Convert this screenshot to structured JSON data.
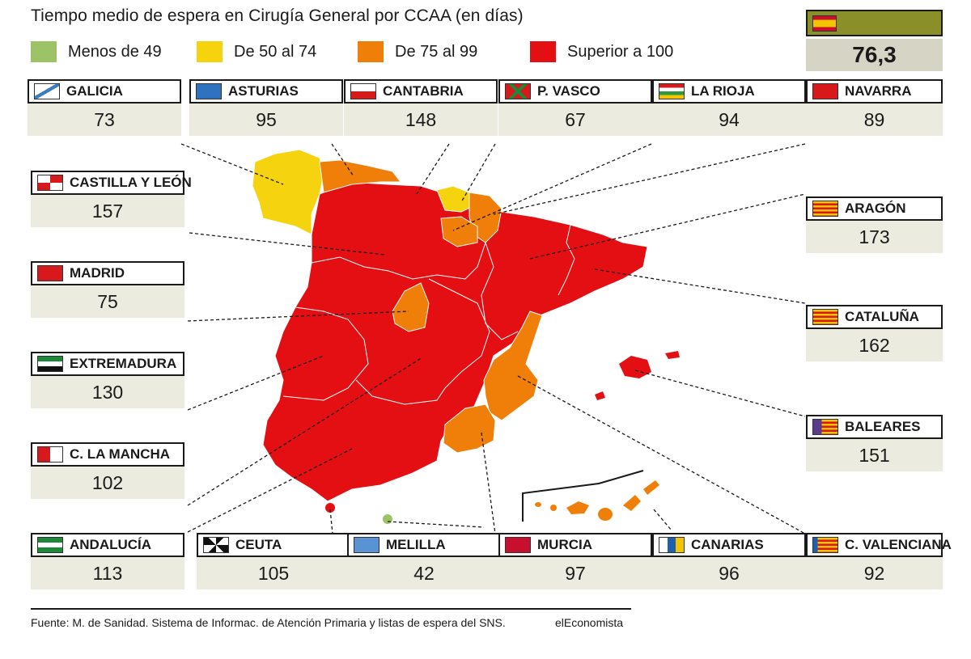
{
  "title": "Tiempo medio de espera en Cirugía General por CCAA (en días)",
  "legend": [
    {
      "label": "Menos de 49",
      "color": "#9cc466"
    },
    {
      "label": "De 50 al 74",
      "color": "#f5d40f"
    },
    {
      "label": "De 75 al 99",
      "color": "#f07f09"
    },
    {
      "label": "Superior a 100",
      "color": "#e30f13"
    }
  ],
  "spain": {
    "value": "76,3",
    "flag_color": "#8a8f2a"
  },
  "regions": {
    "galicia": {
      "name": "GALICIA",
      "value": "73"
    },
    "asturias": {
      "name": "ASTURIAS",
      "value": "95"
    },
    "cantabria": {
      "name": "CANTABRIA",
      "value": "148"
    },
    "pvasco": {
      "name": "P. VASCO",
      "value": "67"
    },
    "larioja": {
      "name": "LA RIOJA",
      "value": "94"
    },
    "navarra": {
      "name": "NAVARRA",
      "value": "89"
    },
    "castillayleon": {
      "name": "CASTILLA Y LEÓN",
      "value": "157"
    },
    "madrid": {
      "name": "MADRID",
      "value": "75"
    },
    "extremadura": {
      "name": "EXTREMADURA",
      "value": "130"
    },
    "clamancha": {
      "name": "C. LA MANCHA",
      "value": "102"
    },
    "andalucia": {
      "name": "ANDALUCÍA",
      "value": "113"
    },
    "ceuta": {
      "name": "CEUTA",
      "value": "105"
    },
    "melilla": {
      "name": "MELILLA",
      "value": "42"
    },
    "murcia": {
      "name": "MURCIA",
      "value": "97"
    },
    "canarias": {
      "name": "CANARIAS",
      "value": "96"
    },
    "cvalenciana": {
      "name": "C. VALENCIANA",
      "value": "92"
    },
    "aragon": {
      "name": "ARAGÓN",
      "value": "173"
    },
    "cataluna": {
      "name": "CATALUÑA",
      "value": "162"
    },
    "baleares": {
      "name": "BALEARES",
      "value": "151"
    }
  },
  "footer": {
    "source": "Fuente: M. de Sanidad. Sistema de Informac. de Atención Primaria y listas de espera del SNS.",
    "brand": "elEconomista"
  }
}
